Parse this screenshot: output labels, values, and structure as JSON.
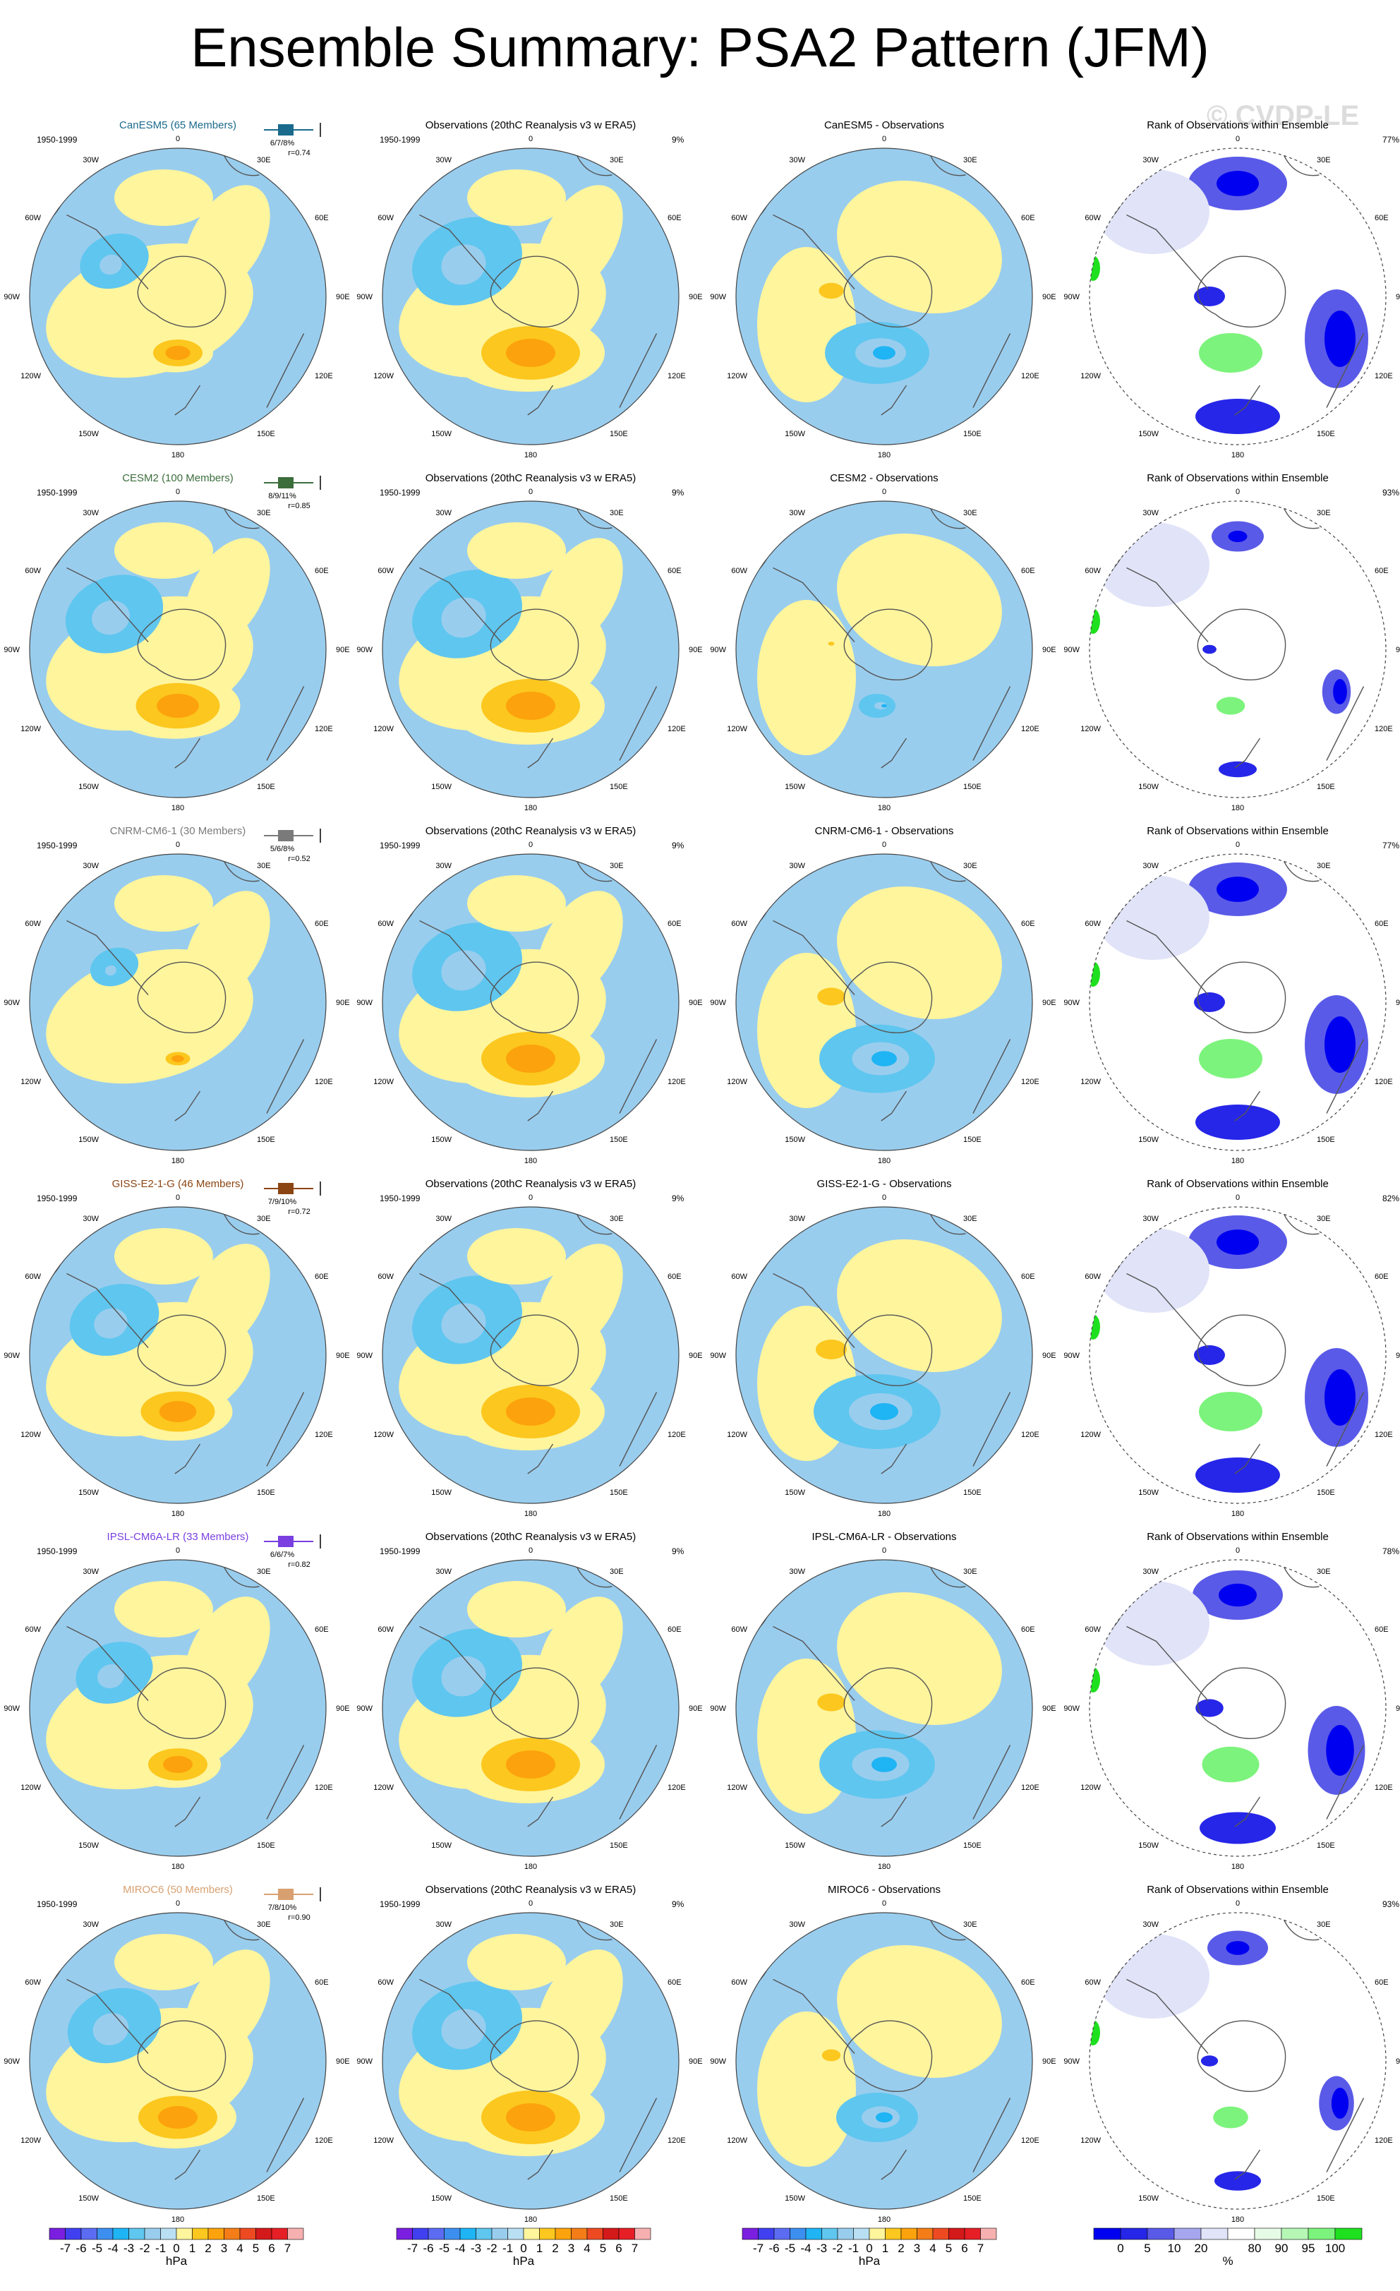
{
  "title": "Ensemble Summary: PSA2 Pattern (JFM)",
  "watermark": "© CVDP-LE",
  "colors": {
    "neg": [
      "#7a1fe0",
      "#4040f0",
      "#5b6cf2",
      "#3d8fef",
      "#1fb4f4",
      "#5fc6ef",
      "#99cdee",
      "#b9dff2"
    ],
    "pos": [
      "#fff59d",
      "#fcc71e",
      "#fca20c",
      "#f47d18",
      "#ee4a22",
      "#d4191b",
      "#e61e25",
      "#f7b0b0"
    ],
    "rank": [
      "#0000f0",
      "#2626e8",
      "#5a5ae8",
      "#a6a6ef",
      "#e1e4f8",
      "#ffffff",
      "#e6fbe6",
      "#b6f7b6",
      "#7cf37c",
      "#1fe01f"
    ],
    "land_line": "#555555"
  },
  "chart_data": {
    "type": "map-panels",
    "period": "1950-1999",
    "longitude_labels": [
      "0",
      "30E",
      "60E",
      "90E",
      "120E",
      "150E",
      "180",
      "150W",
      "120W",
      "90W",
      "60W",
      "30W"
    ],
    "column_titles": {
      "observations": "Observations (20thC Reanalysis v3 w ERA5)",
      "difference_suffix": " - Observations",
      "rank": "Rank of Observations within Ensemble"
    },
    "observation_percent": "9%",
    "rows": [
      {
        "model": "CanESM5",
        "label": "CanESM5 (65 Members)",
        "label_color": "#1a6a8c",
        "stats": "6/7/8%",
        "r": "r=0.74",
        "rank_percent": "77%"
      },
      {
        "model": "CESM2",
        "label": "CESM2 (100 Members)",
        "label_color": "#3c6e3c",
        "stats": "8/9/11%",
        "r": "r=0.85",
        "rank_percent": "93%"
      },
      {
        "model": "CNRM-CM6-1",
        "label": "CNRM-CM6-1 (30 Members)",
        "label_color": "#7a7a7a",
        "stats": "5/6/8%",
        "r": "r=0.52",
        "rank_percent": "77%"
      },
      {
        "model": "GISS-E2-1-G",
        "label": "GISS-E2-1-G (46 Members)",
        "label_color": "#8b4513",
        "stats": "7/9/10%",
        "r": "r=0.72",
        "rank_percent": "82%"
      },
      {
        "model": "IPSL-CM6A-LR",
        "label": "IPSL-CM6A-LR (33 Members)",
        "label_color": "#7a3fe0",
        "stats": "6/6/7%",
        "r": "r=0.82",
        "rank_percent": "78%"
      },
      {
        "model": "MIROC6",
        "label": "MIROC6 (50 Members)",
        "label_color": "#d8a070",
        "stats": "7/8/10%",
        "r": "r=0.90",
        "rank_percent": "93%"
      }
    ],
    "colorbar_hpa": {
      "ticks": [
        "-7",
        "-6",
        "-5",
        "-4",
        "-3",
        "-2",
        "-1",
        "0",
        "1",
        "2",
        "3",
        "4",
        "5",
        "6",
        "7"
      ],
      "unit": "hPa"
    },
    "colorbar_rank": {
      "ticks": [
        "0",
        "5",
        "10",
        "20",
        "80",
        "90",
        "95",
        "100"
      ],
      "unit": "%"
    }
  }
}
